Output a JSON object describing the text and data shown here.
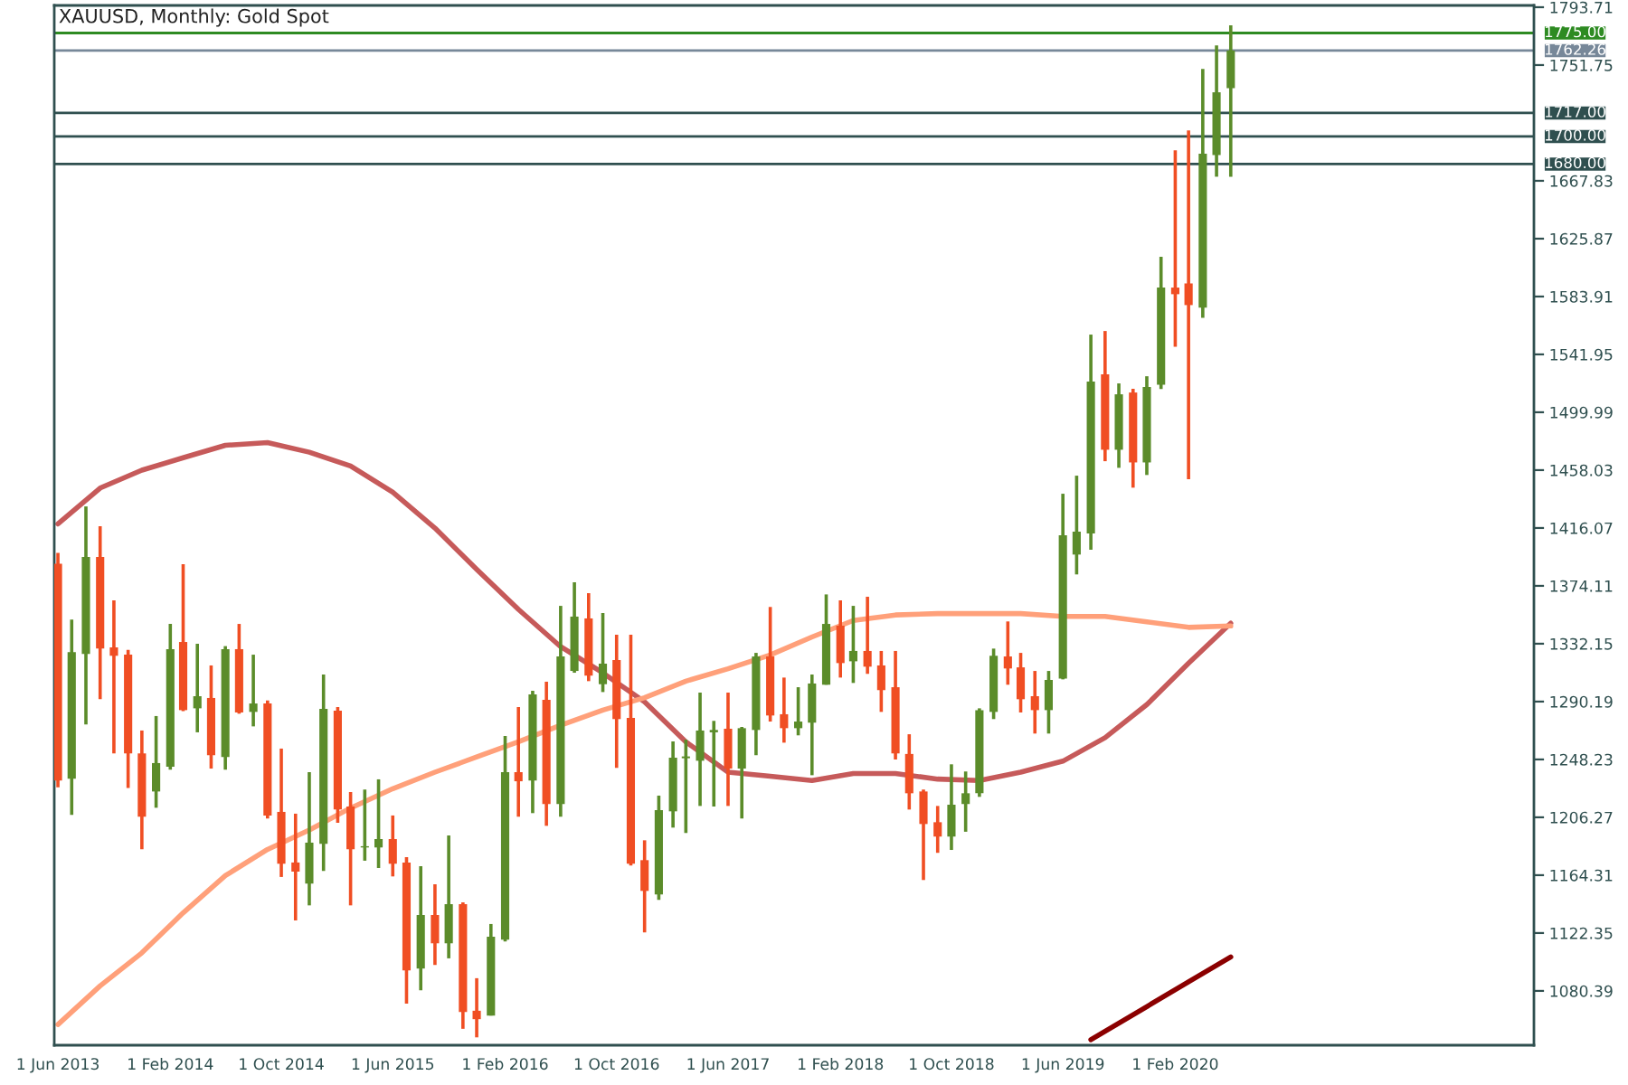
{
  "chart_data": {
    "type": "candlestick",
    "title": "XAUUSD, Monthly: Gold Spot",
    "x": [
      "2013-06",
      "2013-07",
      "2013-08",
      "2013-09",
      "2013-10",
      "2013-11",
      "2013-12",
      "2014-01",
      "2014-02",
      "2014-03",
      "2014-04",
      "2014-05",
      "2014-06",
      "2014-07",
      "2014-08",
      "2014-09",
      "2014-10",
      "2014-11",
      "2014-12",
      "2015-01",
      "2015-02",
      "2015-03",
      "2015-04",
      "2015-05",
      "2015-06",
      "2015-07",
      "2015-08",
      "2015-09",
      "2015-10",
      "2015-11",
      "2015-12",
      "2016-01",
      "2016-02",
      "2016-03",
      "2016-04",
      "2016-05",
      "2016-06",
      "2016-07",
      "2016-08",
      "2016-09",
      "2016-10",
      "2016-11",
      "2016-12",
      "2017-01",
      "2017-02",
      "2017-03",
      "2017-04",
      "2017-05",
      "2017-06",
      "2017-07",
      "2017-08",
      "2017-09",
      "2017-10",
      "2017-11",
      "2017-12",
      "2018-01",
      "2018-02",
      "2018-03",
      "2018-04",
      "2018-05",
      "2018-06",
      "2018-07",
      "2018-08",
      "2018-09",
      "2018-10",
      "2018-11",
      "2018-12",
      "2019-01",
      "2019-02",
      "2019-03",
      "2019-04",
      "2019-05",
      "2019-06",
      "2019-07",
      "2019-08",
      "2019-09",
      "2019-10",
      "2019-11",
      "2019-12",
      "2020-01",
      "2020-02",
      "2020-03",
      "2020-04",
      "2020-05",
      "2020-06"
    ],
    "ohlc": [
      [
        1390.2,
        1398,
        1228,
        1232.9
      ],
      [
        1234.2,
        1349.6,
        1208.0,
        1326.0
      ],
      [
        1324.7,
        1431.7,
        1273.6,
        1395.0
      ],
      [
        1395.0,
        1417.3,
        1291.9,
        1328.6
      ],
      [
        1329.5,
        1363.6,
        1252.6,
        1323.4
      ],
      [
        1324.2,
        1327.7,
        1227.6,
        1252.6
      ],
      [
        1252.6,
        1269.2,
        1183.1,
        1206.7
      ],
      [
        1225.0,
        1279.7,
        1213.2,
        1245.6
      ],
      [
        1243.0,
        1346.5,
        1240.8,
        1328.2
      ],
      [
        1333.4,
        1389.8,
        1283.2,
        1284.0
      ],
      [
        1285.3,
        1332.1,
        1267.9,
        1294.1
      ],
      [
        1292.8,
        1316.4,
        1241.6,
        1251.3
      ],
      [
        1250.0,
        1330.4,
        1240.8,
        1328.2
      ],
      [
        1328.2,
        1346.5,
        1281.4,
        1282.3
      ],
      [
        1282.7,
        1324.2,
        1272.2,
        1288.8
      ],
      [
        1288.8,
        1291.0,
        1205.4,
        1207.6
      ],
      [
        1210.2,
        1256.1,
        1163.0,
        1172.6
      ],
      [
        1173.5,
        1208.9,
        1131.5,
        1166.9
      ],
      [
        1158.2,
        1239.0,
        1142.4,
        1187.9
      ],
      [
        1187.0,
        1309.8,
        1167.4,
        1284.9
      ],
      [
        1283.6,
        1286.2,
        1202.3,
        1211.9
      ],
      [
        1214.1,
        1224.6,
        1142.4,
        1183.1
      ],
      [
        1184.4,
        1226.4,
        1174.8,
        1185.3
      ],
      [
        1184.4,
        1233.8,
        1169.5,
        1190.5
      ],
      [
        1190.5,
        1207.6,
        1163.4,
        1172.6
      ],
      [
        1173.5,
        1177.4,
        1071.2,
        1095.3
      ],
      [
        1096.6,
        1170.9,
        1080.8,
        1135.4
      ],
      [
        1135.4,
        1157.7,
        1099.2,
        1114.9
      ],
      [
        1114.9,
        1193.1,
        1104.0,
        1143.3
      ],
      [
        1143.3,
        1144.6,
        1052.9,
        1065.1
      ],
      [
        1066.0,
        1089.6,
        1046.7,
        1059.9
      ],
      [
        1062.5,
        1128.9,
        1062.5,
        1119.7
      ],
      [
        1117.5,
        1265.2,
        1116.2,
        1239.0
      ],
      [
        1239.0,
        1286.2,
        1206.7,
        1232.4
      ],
      [
        1232.9,
        1298.0,
        1209.3,
        1295.4
      ],
      [
        1291.5,
        1304.6,
        1200.1,
        1215.9
      ],
      [
        1215.9,
        1359.6,
        1206.7,
        1322.9
      ],
      [
        1312.4,
        1376.7,
        1311.1,
        1351.8
      ],
      [
        1350.5,
        1368.8,
        1305.0,
        1309.0
      ],
      [
        1302.8,
        1354.4,
        1297.1,
        1317.7
      ],
      [
        1320.3,
        1338.7,
        1242.1,
        1277.5
      ],
      [
        1278.4,
        1338.7,
        1171.3,
        1172.6
      ],
      [
        1175.2,
        1189.6,
        1122.8,
        1152.9
      ],
      [
        1150.3,
        1222.0,
        1146.4,
        1211.5
      ],
      [
        1210.6,
        1261.3,
        1198.8,
        1249.5
      ],
      [
        1249.1,
        1262.6,
        1194.9,
        1250.4
      ],
      [
        1247.3,
        1296.7,
        1214.5,
        1269.2
      ],
      [
        1267.9,
        1276.2,
        1214.1,
        1269.6
      ],
      [
        1270.5,
        1296.7,
        1214.5,
        1241.6
      ],
      [
        1241.6,
        1271.8,
        1205.4,
        1270.9
      ],
      [
        1269.6,
        1325.5,
        1251.3,
        1322.9
      ],
      [
        1322.9,
        1358.8,
        1275.7,
        1280.1
      ],
      [
        1281.0,
        1307.6,
        1260.4,
        1270.9
      ],
      [
        1270.9,
        1300.6,
        1265.7,
        1275.7
      ],
      [
        1274.9,
        1309.8,
        1236.8,
        1303.3
      ],
      [
        1302.4,
        1367.9,
        1302.4,
        1346.5
      ],
      [
        1345.2,
        1363.6,
        1307.6,
        1318.1
      ],
      [
        1319.4,
        1359.6,
        1303.7,
        1326.9
      ],
      [
        1326.9,
        1366.2,
        1310.3,
        1315.5
      ],
      [
        1316.4,
        1326.9,
        1282.7,
        1298.5
      ],
      [
        1300.6,
        1326.9,
        1248.2,
        1252.6
      ],
      [
        1252.2,
        1266.5,
        1211.9,
        1223.7
      ],
      [
        1225.0,
        1226.4,
        1160.8,
        1201.4
      ],
      [
        1202.7,
        1214.5,
        1180.5,
        1192.3
      ],
      [
        1192.3,
        1244.7,
        1182.6,
        1215.4
      ],
      [
        1215.9,
        1239.5,
        1195.8,
        1223.7
      ],
      [
        1223.7,
        1285.3,
        1221.1,
        1284.0
      ],
      [
        1282.7,
        1328.6,
        1277.5,
        1323.4
      ],
      [
        1322.9,
        1348.3,
        1302.4,
        1314.2
      ],
      [
        1315.0,
        1325.5,
        1282.3,
        1291.9
      ],
      [
        1294.1,
        1312.4,
        1267.0,
        1284.0
      ],
      [
        1284.0,
        1312.4,
        1267.0,
        1305.9
      ],
      [
        1306.8,
        1440.9,
        1306.3,
        1410.8
      ],
      [
        1396.8,
        1454.0,
        1382.4,
        1413.4
      ],
      [
        1412.1,
        1556.3,
        1400.3,
        1522.2
      ],
      [
        1527.5,
        1558.9,
        1464.5,
        1472.8
      ],
      [
        1472.8,
        1520.9,
        1459.7,
        1513.0
      ],
      [
        1514.3,
        1517.0,
        1445.3,
        1463.6
      ],
      [
        1463.6,
        1526.1,
        1454.5,
        1518.3
      ],
      [
        1520.0,
        1612.7,
        1516.9,
        1590.4
      ],
      [
        1590.4,
        1690.0,
        1547.5,
        1585.6
      ],
      [
        1593.4,
        1704.4,
        1451.4,
        1577.7
      ],
      [
        1575.9,
        1749.0,
        1568.5,
        1687.4
      ],
      [
        1686.5,
        1766.0,
        1670.8,
        1732.0
      ],
      [
        1735.0,
        1780.5,
        1670.8,
        1762.3
      ]
    ],
    "series": [
      {
        "type": "line",
        "color": "#c65a5a",
        "x": [
          "2013-06",
          "2013-09",
          "2013-12",
          "2014-03",
          "2014-06",
          "2014-09",
          "2014-12",
          "2015-03",
          "2015-06",
          "2015-09",
          "2015-12",
          "2016-03",
          "2016-06",
          "2016-09",
          "2016-12",
          "2017-03",
          "2017-06",
          "2017-09",
          "2017-12",
          "2018-03",
          "2018-06",
          "2018-09",
          "2018-12",
          "2019-03",
          "2019-06",
          "2019-09",
          "2019-12",
          "2020-03",
          "2020-06"
        ],
        "values": [
          1419,
          1445,
          1458,
          1467,
          1476,
          1478,
          1471,
          1461,
          1442,
          1416,
          1386,
          1357,
          1330,
          1311,
          1290,
          1261,
          1239,
          1236,
          1233,
          1238,
          1238,
          1234,
          1233,
          1239,
          1247,
          1264,
          1288,
          1318,
          1347
        ]
      },
      {
        "type": "line",
        "color": "#ffa07a",
        "x": [
          "2013-06",
          "2013-09",
          "2013-12",
          "2014-03",
          "2014-06",
          "2014-09",
          "2014-12",
          "2015-03",
          "2015-06",
          "2015-09",
          "2015-12",
          "2016-03",
          "2016-06",
          "2016-09",
          "2016-12",
          "2017-03",
          "2017-06",
          "2017-09",
          "2017-12",
          "2018-03",
          "2018-06",
          "2018-09",
          "2018-12",
          "2019-03",
          "2019-06",
          "2019-09",
          "2019-12",
          "2020-03",
          "2020-06"
        ],
        "values": [
          1056,
          1084,
          1108,
          1137,
          1164,
          1183,
          1197,
          1213,
          1227,
          1239,
          1250,
          1261,
          1273,
          1284,
          1293,
          1305,
          1314,
          1324,
          1337,
          1349,
          1353,
          1354,
          1354,
          1354,
          1352,
          1352,
          1348,
          1344,
          1345
        ]
      },
      {
        "type": "line",
        "color": "#8b0000",
        "x": [
          "2019-08",
          "2019-12",
          "2020-03",
          "2020-06"
        ],
        "values": [
          1045,
          1069,
          1087,
          1105
        ]
      }
    ],
    "ref_lines": [
      {
        "axis": "y",
        "value": 1775,
        "label": "1775.00",
        "color": "#2e8b22"
      },
      {
        "axis": "y",
        "value": 1762.26,
        "label": "1762.26",
        "color": "#778899"
      },
      {
        "axis": "y",
        "value": 1717,
        "label": "1717.00",
        "color": "#2f4f4f"
      },
      {
        "axis": "y",
        "value": 1700,
        "label": "1700.00",
        "color": "#2f4f4f"
      },
      {
        "axis": "y",
        "value": 1680,
        "label": "1680.00",
        "color": "#2f4f4f"
      }
    ],
    "xlim": [
      "2013-05-24",
      "2022-03-24"
    ],
    "xticks": [
      {
        "value": "2013-06",
        "label": "1 Jun 2013"
      },
      {
        "value": "2014-02",
        "label": "1 Feb 2014"
      },
      {
        "value": "2014-10",
        "label": "1 Oct 2014"
      },
      {
        "value": "2015-06",
        "label": "1 Jun 2015"
      },
      {
        "value": "2016-02",
        "label": "1 Feb 2016"
      },
      {
        "value": "2016-10",
        "label": "1 Oct 2016"
      },
      {
        "value": "2017-06",
        "label": "1 Jun 2017"
      },
      {
        "value": "2018-02",
        "label": "1 Feb 2018"
      },
      {
        "value": "2018-10",
        "label": "1 Oct 2018"
      },
      {
        "value": "2019-06",
        "label": "1 Jun 2019"
      },
      {
        "value": "2020-02",
        "label": "1 Feb 2020"
      }
    ],
    "ylim": [
      1041,
      1795
    ],
    "yticks": [
      1080.39,
      1122.35,
      1164.31,
      1206.27,
      1248.23,
      1290.19,
      1332.15,
      1374.11,
      1416.07,
      1458.03,
      1499.99,
      1541.95,
      1583.91,
      1625.87,
      1667.83,
      1751.75,
      1793.71
    ],
    "grid": false
  }
}
